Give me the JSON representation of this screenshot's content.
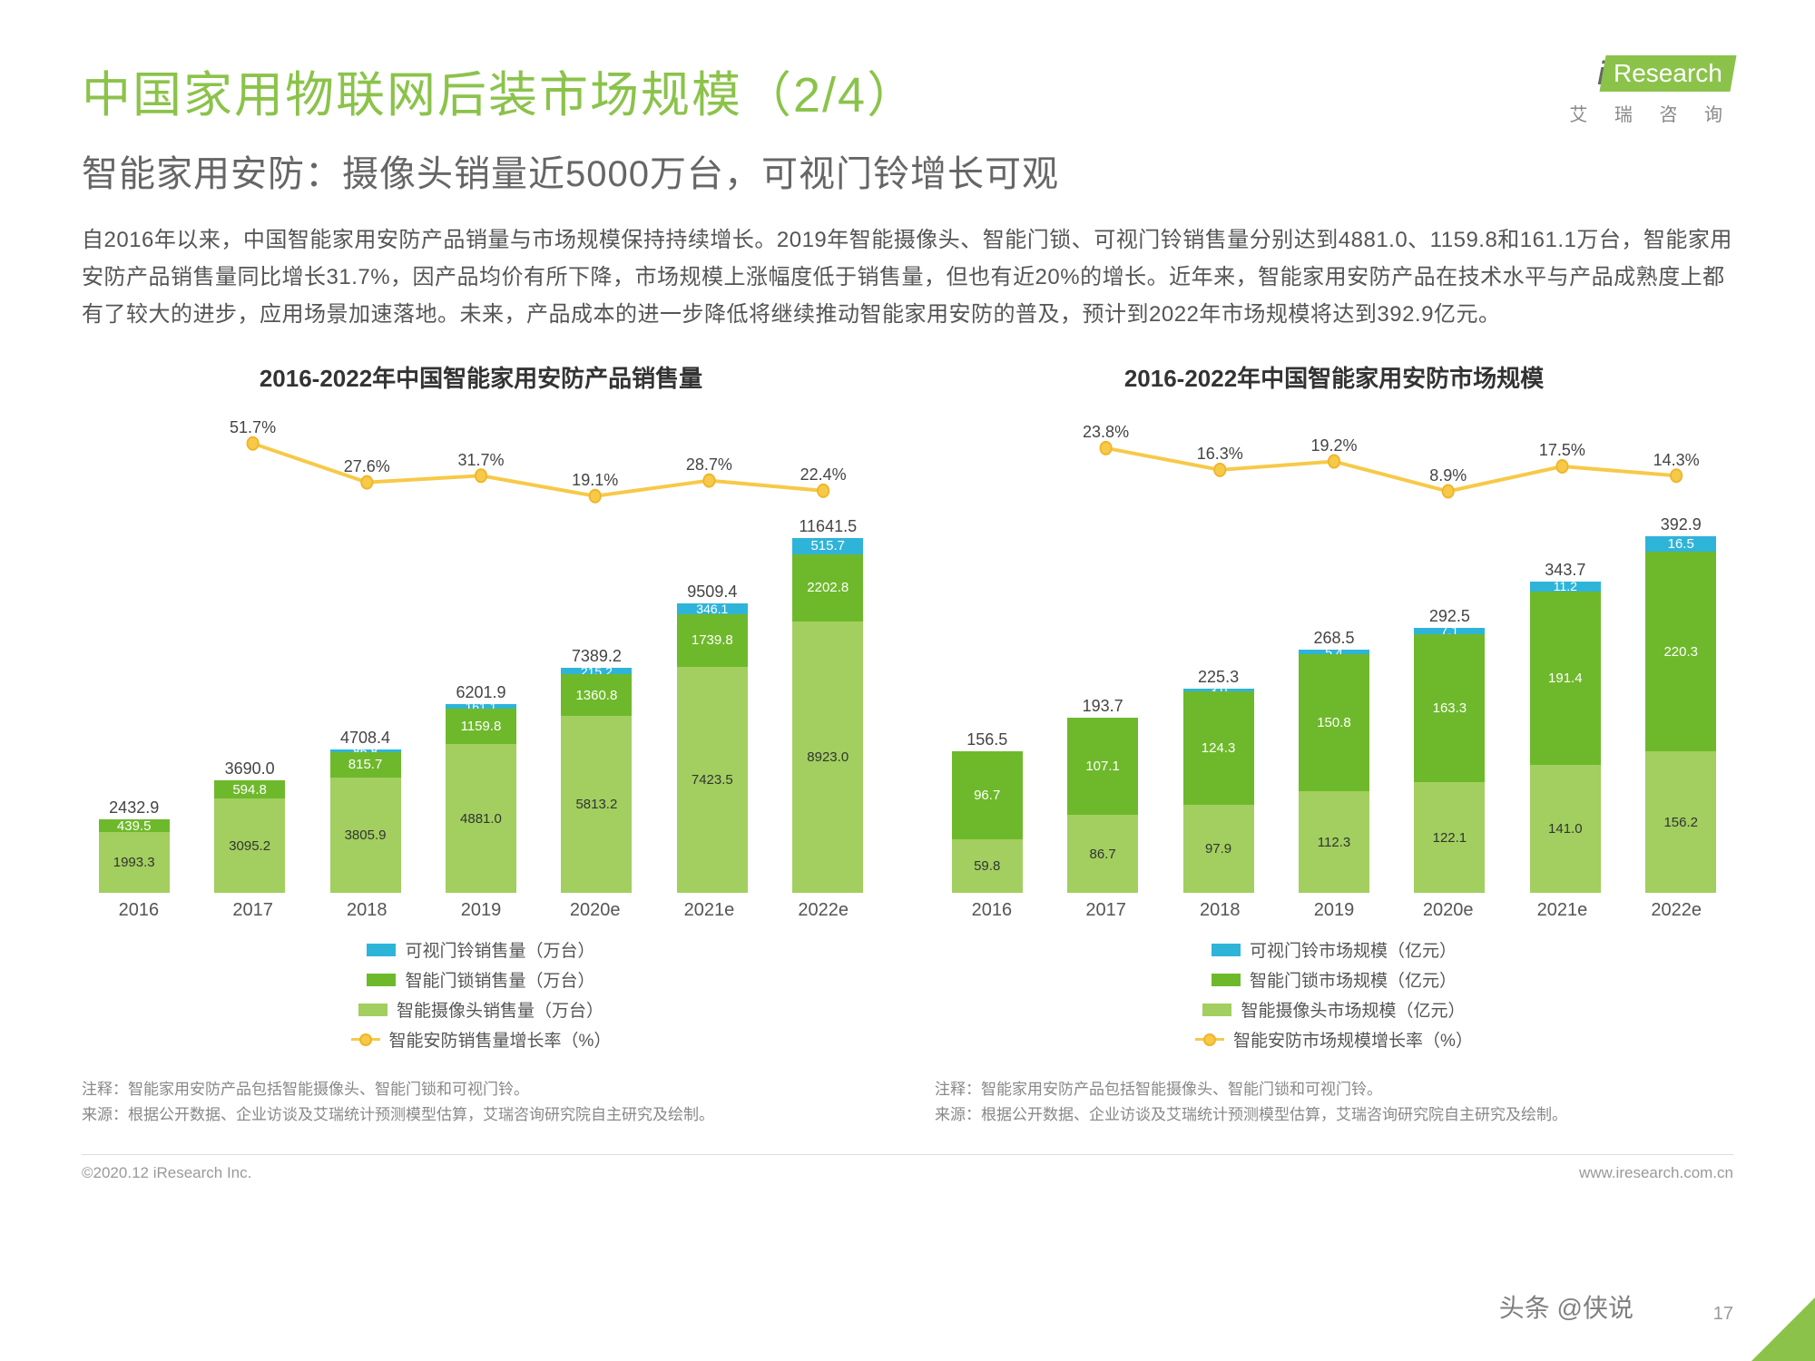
{
  "header": {
    "title": "中国家用物联网后装市场规模（2/4）",
    "logo_main": "Research",
    "logo_i": "i",
    "logo_sub": "艾 瑞 咨 询"
  },
  "subtitle": "智能家用安防：摄像头销量近5000万台，可视门铃增长可观",
  "body": "自2016年以来，中国智能家用安防产品销量与市场规模保持持续增长。2019年智能摄像头、智能门锁、可视门铃销售量分别达到4881.0、1159.8和161.1万台，智能家用安防产品销售量同比增长31.7%，因产品均价有所下降，市场规模上涨幅度低于销售量，但也有近20%的增长。近年来，智能家用安防产品在技术水平与产品成熟度上都有了较大的进步，应用场景加速落地。未来，产品成本的进一步降低将继续推动智能家用安防的普及，预计到2022年市场规模将达到392.9亿元。",
  "colors": {
    "camera": "#a2cf5f",
    "lock": "#6eb92b",
    "doorbell": "#2fb4d9",
    "line": "#f7c948",
    "marker_border": "#f0b429",
    "title": "#8bc34a"
  },
  "chart_left": {
    "title": "2016-2022年中国智能家用安防产品销售量",
    "ymax": 12500,
    "line_y_range": [
      15,
      60
    ],
    "years": [
      "2016",
      "2017",
      "2018",
      "2019",
      "2020e",
      "2021e",
      "2022e"
    ],
    "totals": [
      "2432.9",
      "3690.0",
      "4708.4",
      "6201.9",
      "7389.2",
      "9509.4",
      "11641.5"
    ],
    "camera": [
      1993.3,
      3095.2,
      3805.9,
      4881.0,
      5813.2,
      7423.5,
      8923.0
    ],
    "camera_lbl": [
      "1993.3",
      "3095.2",
      "3805.9",
      "4881.0",
      "5813.2",
      "7423.5",
      "8923.0"
    ],
    "lock": [
      439.5,
      594.8,
      815.7,
      1159.8,
      1360.8,
      1739.8,
      2202.8
    ],
    "lock_lbl": [
      "439.5",
      "594.8",
      "815.7",
      "1159.8",
      "1360.8",
      "1739.8",
      "2202.8"
    ],
    "doorbell": [
      0.1,
      0.0,
      86.8,
      161.1,
      215.2,
      346.1,
      515.7
    ],
    "doorbell_lbl": [
      "",
      "",
      "86.8",
      "161.1",
      "215.2",
      "346.1",
      "515.7"
    ],
    "growth": [
      51.7,
      27.6,
      31.7,
      19.1,
      28.7,
      22.4
    ],
    "growth_lbl": [
      "51.7%",
      "27.6%",
      "31.7%",
      "19.1%",
      "28.7%",
      "22.4%"
    ],
    "legend": [
      "可视门铃销售量（万台）",
      "智能门锁销售量（万台）",
      "智能摄像头销售量（万台）",
      "智能安防销售量增长率（%）"
    ]
  },
  "chart_right": {
    "title": "2016-2022年中国智能家用安防市场规模",
    "ymax": 420,
    "line_y_range": [
      5,
      30
    ],
    "years": [
      "2016",
      "2017",
      "2018",
      "2019",
      "2020e",
      "2021e",
      "2022e"
    ],
    "totals": [
      "156.5",
      "193.7",
      "225.3",
      "268.5",
      "292.5",
      "343.7",
      "392.9"
    ],
    "camera": [
      59.8,
      86.7,
      97.9,
      112.3,
      122.1,
      141.0,
      156.2
    ],
    "camera_lbl": [
      "59.8",
      "86.7",
      "97.9",
      "112.3",
      "122.1",
      "141.0",
      "156.2"
    ],
    "lock": [
      96.7,
      107.1,
      124.3,
      150.8,
      163.3,
      191.4,
      220.3
    ],
    "lock_lbl": [
      "96.7",
      "107.1",
      "124.3",
      "150.8",
      "163.3",
      "191.4",
      "220.3"
    ],
    "doorbell": [
      0.0,
      0.0,
      3.0,
      5.4,
      7.1,
      11.2,
      16.5
    ],
    "doorbell_lbl": [
      "0.0",
      "0.0",
      "3.0",
      "5.4",
      "7.1",
      "11.2",
      "16.5"
    ],
    "growth": [
      23.8,
      16.3,
      19.2,
      8.9,
      17.5,
      14.3
    ],
    "growth_lbl": [
      "23.8%",
      "16.3%",
      "19.2%",
      "8.9%",
      "17.5%",
      "14.3%"
    ],
    "legend": [
      "可视门铃市场规模（亿元）",
      "智能门锁市场规模（亿元）",
      "智能摄像头市场规模（亿元）",
      "智能安防市场规模增长率（%）"
    ]
  },
  "notes": "注释：智能家用安防产品包括智能摄像头、智能门锁和可视门铃。\n来源：根据公开数据、企业访谈及艾瑞统计预测模型估算，艾瑞咨询研究院自主研究及绘制。",
  "footer_left": "©2020.12 iResearch Inc.",
  "footer_right": "www.iresearch.com.cn",
  "watermark": "头条 @侠说",
  "pagenum": "17"
}
